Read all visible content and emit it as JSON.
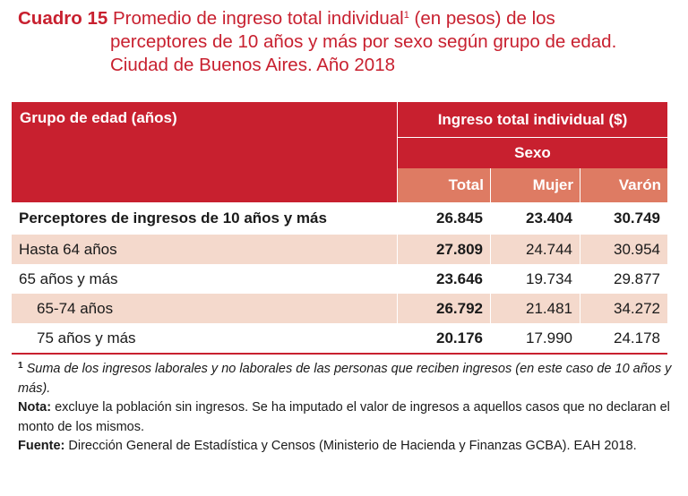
{
  "title": {
    "label": "Cuadro 15",
    "line1": "Promedio de ingreso total individual",
    "line1_sup": "1",
    "line1_tail": " (en pesos) de los",
    "line2": "perceptores de 10 años y más por sexo según grupo de edad.",
    "line3": "Ciudad de Buenos Aires. Año 2018"
  },
  "table": {
    "header": {
      "group": "Grupo de edad (años)",
      "income": "Ingreso total individual ($)",
      "sexo": "Sexo",
      "total": "Total",
      "mujer": "Mujer",
      "varon": "Varón"
    },
    "rows": [
      {
        "label": "Perceptores de ingresos de 10 años y más",
        "total": "26.845",
        "mujer": "23.404",
        "varon": "30.749"
      },
      {
        "label": "Hasta 64 años",
        "total": "27.809",
        "mujer": "24.744",
        "varon": "30.954"
      },
      {
        "label": "65 años y más",
        "total": "23.646",
        "mujer": "19.734",
        "varon": "29.877"
      },
      {
        "label": "65-74 años",
        "total": "26.792",
        "mujer": "21.481",
        "varon": "34.272"
      },
      {
        "label": "75 años y más",
        "total": "20.176",
        "mujer": "17.990",
        "varon": "24.178"
      }
    ]
  },
  "notes": {
    "footnote_mark": "1",
    "footnote": "Suma de los ingresos laborales y no laborales de las personas que reciben ingresos (en este caso de 10 años y más).",
    "nota_label": "Nota:",
    "nota": "excluye la población sin ingresos. Se ha imputado el valor de ingresos a aquellos casos que no declaran el monto de los mismos.",
    "fuente_label": "Fuente:",
    "fuente": "Dirección General de Estadística y Censos (Ministerio de Hacienda y Finanzas GCBA). EAH 2018."
  }
}
